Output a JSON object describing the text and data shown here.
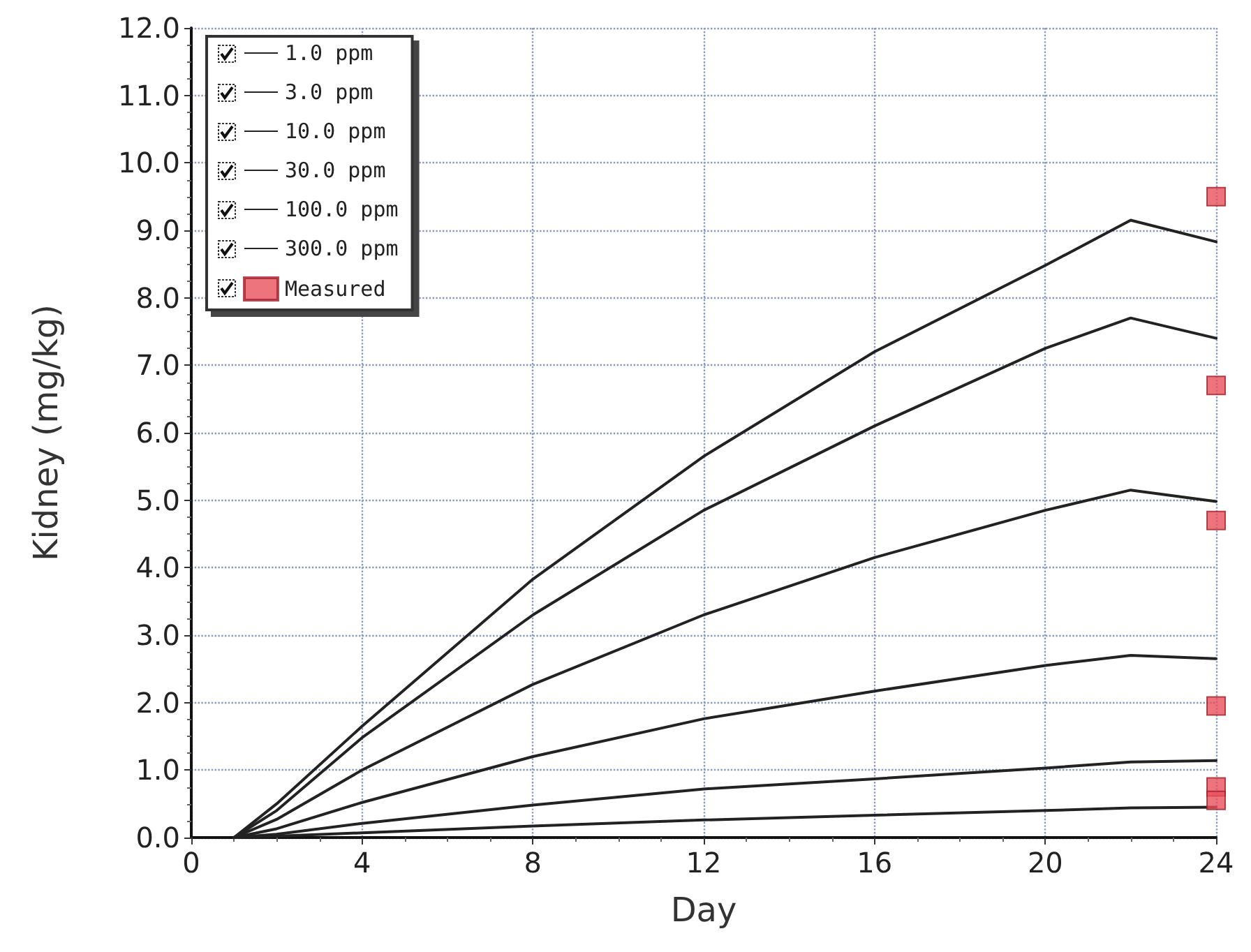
{
  "chart_data": {
    "type": "line",
    "xlabel": "Day",
    "ylabel": "Kidney (mg/kg)",
    "xlim": [
      0,
      24
    ],
    "xticks": [
      0,
      4,
      8,
      12,
      16,
      20,
      24
    ],
    "ylim": [
      0,
      12
    ],
    "yticks": [
      {
        "value": 0,
        "label": "0.0"
      },
      {
        "value": 1,
        "label": "1.0"
      },
      {
        "value": 2,
        "label": "2.0"
      },
      {
        "value": 3,
        "label": "3.0"
      },
      {
        "value": 4,
        "label": "4.0"
      },
      {
        "value": 5,
        "label": "5.0"
      },
      {
        "value": 6,
        "label": "6.0"
      },
      {
        "value": 7,
        "label": "7.0"
      },
      {
        "value": 8,
        "label": "8.0"
      },
      {
        "value": 9,
        "label": "9.0"
      },
      {
        "value": 10,
        "label": "10.0"
      },
      {
        "value": 11,
        "label": "11.0"
      },
      {
        "value": 12,
        "label": "12.0"
      }
    ],
    "grid": true,
    "legend": "top left",
    "marker": "none",
    "line_style": "solid",
    "series": [
      {
        "name": "1.0 ppm",
        "color": "#222222",
        "x": [
          1,
          2,
          4,
          8,
          12,
          16,
          20,
          22,
          24
        ],
        "values": [
          0,
          0.02,
          0.07,
          0.17,
          0.26,
          0.33,
          0.4,
          0.44,
          0.45
        ]
      },
      {
        "name": "3.0 ppm",
        "color": "#222222",
        "x": [
          1,
          2,
          4,
          8,
          12,
          16,
          20,
          22,
          24
        ],
        "values": [
          0,
          0.05,
          0.21,
          0.48,
          0.72,
          0.87,
          1.03,
          1.12,
          1.14
        ]
      },
      {
        "name": "10.0 ppm",
        "color": "#222222",
        "x": [
          1,
          2,
          4,
          8,
          12,
          16,
          20,
          22,
          24
        ],
        "values": [
          0,
          0.13,
          0.52,
          1.2,
          1.76,
          2.17,
          2.55,
          2.7,
          2.65
        ]
      },
      {
        "name": "30.0 ppm",
        "color": "#222222",
        "x": [
          1,
          2,
          4,
          8,
          12,
          16,
          20,
          22,
          24
        ],
        "values": [
          0,
          0.27,
          1.0,
          2.27,
          3.3,
          4.15,
          4.85,
          5.15,
          4.98
        ]
      },
      {
        "name": "100.0 ppm",
        "color": "#222222",
        "x": [
          1,
          2,
          4,
          8,
          12,
          16,
          20,
          22,
          24
        ],
        "values": [
          0,
          0.4,
          1.48,
          3.3,
          4.85,
          6.1,
          7.25,
          7.7,
          7.4
        ]
      },
      {
        "name": "300.0 ppm",
        "color": "#222222",
        "x": [
          1,
          2,
          4,
          8,
          12,
          16,
          20,
          22,
          24
        ],
        "values": [
          0,
          0.5,
          1.65,
          3.83,
          5.65,
          7.2,
          8.48,
          9.15,
          8.83
        ]
      },
      {
        "name": "Measured",
        "type": "scatter",
        "marker": "square",
        "color": "#e8505b",
        "x": [
          24,
          24,
          24,
          24,
          24,
          24
        ],
        "values": [
          9.5,
          6.7,
          4.7,
          1.95,
          0.75,
          0.55
        ]
      }
    ]
  }
}
